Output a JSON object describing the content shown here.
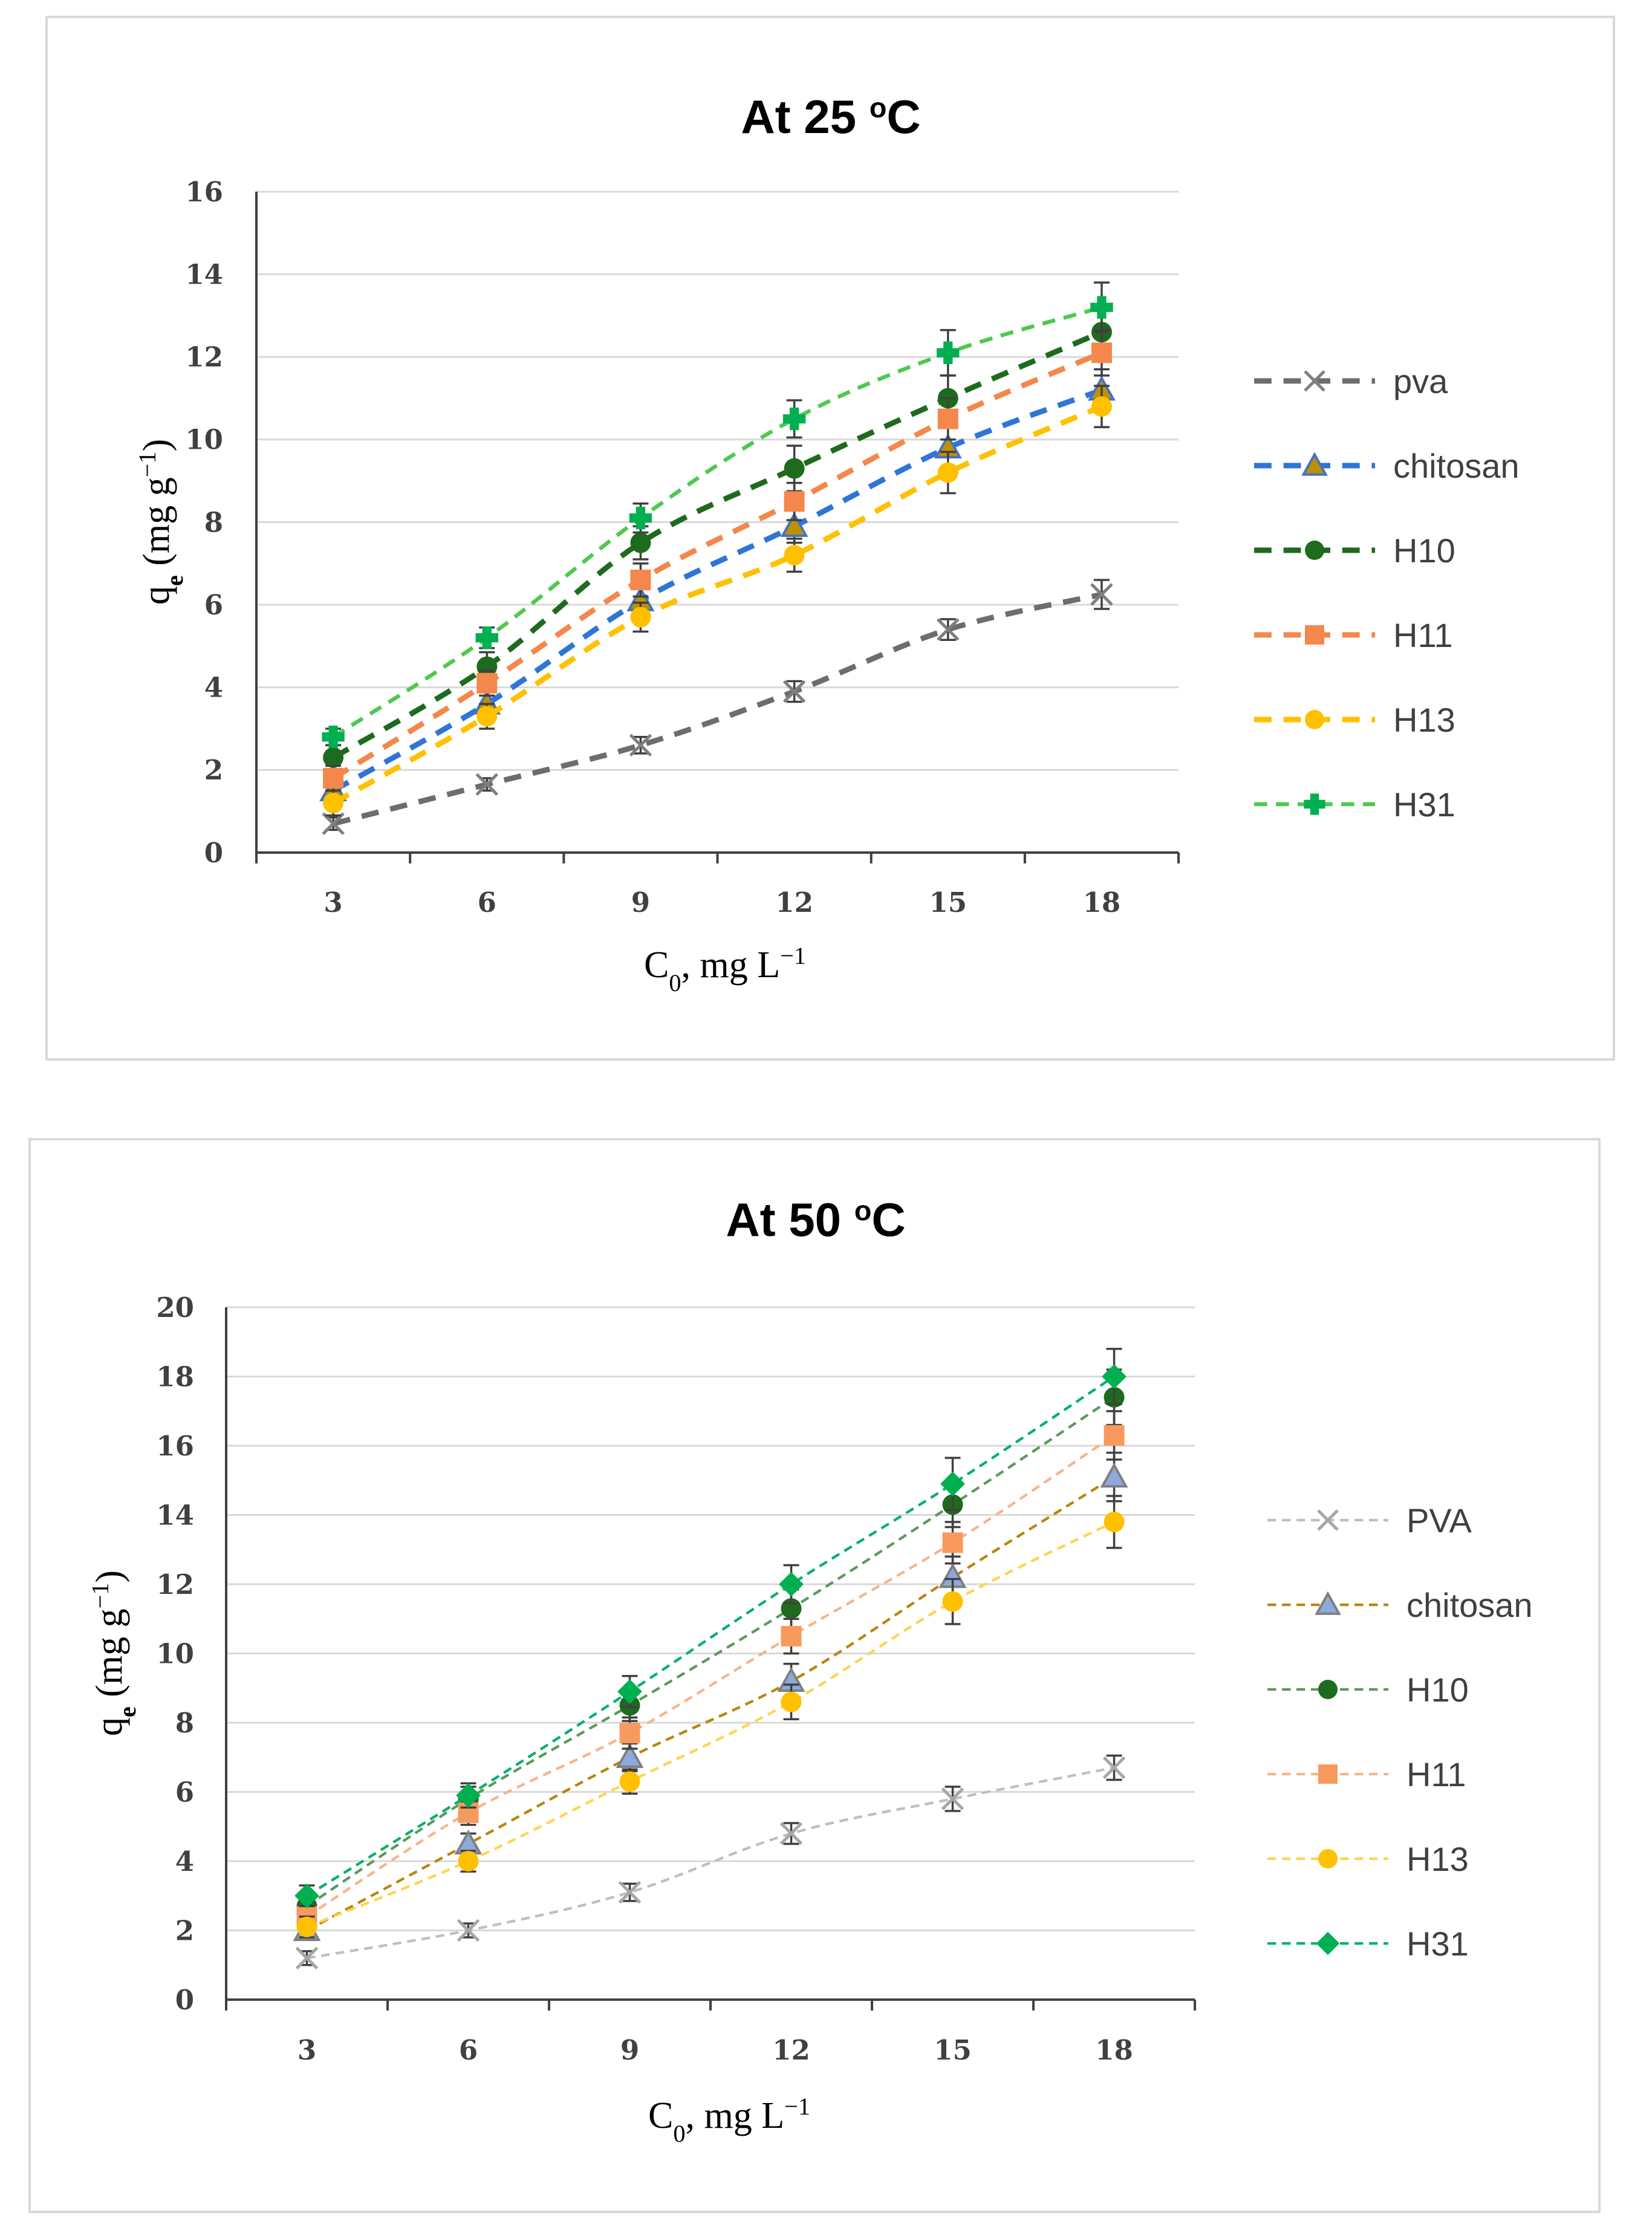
{
  "chart_data": [
    {
      "type": "line",
      "title": "At 25 ",
      "title_sup": "o",
      "title_tail": "C",
      "xlabel": "C",
      "xlabel_sub": "0",
      "xlabel_tail": ", mg L",
      "xlabel_sup": "−1",
      "ylabel": "q",
      "ylabel_sub": "e",
      "ylabel_mid": " (mg g",
      "ylabel_sup": "−1",
      "ylabel_tail": ")",
      "x": [
        3,
        6,
        9,
        12,
        15,
        18
      ],
      "x_ticks": [
        "3",
        "6",
        "9",
        "12",
        "15",
        "18"
      ],
      "ylim": [
        0,
        16
      ],
      "y_ticks": [
        "0",
        "2",
        "4",
        "6",
        "8",
        "10",
        "12",
        "14",
        "16"
      ],
      "grid": true,
      "legend_position": "right",
      "series": [
        {
          "name": "pva",
          "marker": "x",
          "color": "#7f7f7f",
          "line_color": "#6d6d6d",
          "dash": "heavy",
          "values": [
            0.7,
            1.65,
            2.6,
            3.9,
            5.4,
            6.25
          ],
          "err": [
            0.15,
            0.15,
            0.2,
            0.25,
            0.25,
            0.35
          ]
        },
        {
          "name": "chitosan",
          "marker": "triangle",
          "color": "#bf9000",
          "stroke": "#4472c4",
          "line_color": "#2e75d6",
          "dash": "heavy",
          "values": [
            1.5,
            3.6,
            6.1,
            7.9,
            9.8,
            11.2
          ],
          "err": [
            0.3,
            0.3,
            0.4,
            0.4,
            0.5,
            0.5
          ]
        },
        {
          "name": "H10",
          "marker": "circle",
          "color": "#1e6b1e",
          "line_color": "#1e6b1e",
          "dash": "heavy",
          "values": [
            2.3,
            4.5,
            7.5,
            9.3,
            11.0,
            12.6
          ],
          "err": [
            0.3,
            0.35,
            0.4,
            0.55,
            0.55,
            0.6
          ]
        },
        {
          "name": "H11",
          "marker": "square",
          "color": "#f4874b",
          "line_color": "#f4874b",
          "dash": "heavy",
          "values": [
            1.8,
            4.1,
            6.6,
            8.5,
            10.5,
            12.1
          ],
          "err": [
            0.3,
            0.3,
            0.4,
            0.45,
            0.5,
            0.55
          ]
        },
        {
          "name": "H13",
          "marker": "circle",
          "color": "#ffc000",
          "line_color": "#ffc000",
          "dash": "heavy",
          "values": [
            1.2,
            3.3,
            5.7,
            7.2,
            9.2,
            10.8
          ],
          "err": [
            0.3,
            0.3,
            0.35,
            0.4,
            0.5,
            0.5
          ]
        },
        {
          "name": "H31",
          "marker": "cross-star",
          "color": "#00b050",
          "line_color": "#4ec94e",
          "dash": "light",
          "values": [
            2.8,
            5.2,
            8.1,
            10.5,
            12.1,
            13.2
          ],
          "err": [
            0.2,
            0.25,
            0.35,
            0.45,
            0.55,
            0.6
          ]
        }
      ]
    },
    {
      "type": "line",
      "title": "At 50 ",
      "title_sup": "o",
      "title_tail": "C",
      "xlabel": "C",
      "xlabel_sub": "0",
      "xlabel_tail": ", mg L",
      "xlabel_sup": "−1",
      "ylabel": "q",
      "ylabel_sub": "e",
      "ylabel_mid": " (mg g",
      "ylabel_sup": "−1",
      "ylabel_tail": ")",
      "x": [
        3,
        6,
        9,
        12,
        15,
        18
      ],
      "x_ticks": [
        "3",
        "6",
        "9",
        "12",
        "15",
        "18"
      ],
      "ylim": [
        0,
        20
      ],
      "y_ticks": [
        "0",
        "2",
        "4",
        "6",
        "8",
        "10",
        "12",
        "14",
        "16",
        "18",
        "20"
      ],
      "grid": true,
      "legend_position": "right",
      "series": [
        {
          "name": "PVA",
          "marker": "x",
          "color": "#a6a6a6",
          "line_color": "#bfbfbf",
          "dash": "light",
          "values": [
            1.2,
            2.0,
            3.1,
            4.8,
            5.8,
            6.7
          ],
          "err": [
            0.2,
            0.2,
            0.25,
            0.3,
            0.35,
            0.35
          ]
        },
        {
          "name": "chitosan",
          "marker": "triangle",
          "color": "#8ea9db",
          "stroke": "#7f7f7f",
          "line_color": "#b8860b",
          "dash": "light",
          "values": [
            2.0,
            4.5,
            7.0,
            9.2,
            12.2,
            15.1
          ],
          "err": [
            0.25,
            0.3,
            0.4,
            0.5,
            0.6,
            0.7
          ]
        },
        {
          "name": "H10",
          "marker": "circle",
          "color": "#1e6b1e",
          "line_color": "#5a9a5a",
          "dash": "light",
          "values": [
            2.7,
            5.8,
            8.5,
            11.3,
            14.3,
            17.4
          ],
          "err": [
            0.3,
            0.35,
            0.45,
            0.55,
            0.65,
            0.8
          ]
        },
        {
          "name": "H11",
          "marker": "square",
          "color": "#f79a5e",
          "line_color": "#f8b48a",
          "dash": "light",
          "values": [
            2.4,
            5.4,
            7.7,
            10.5,
            13.2,
            16.3
          ],
          "err": [
            0.3,
            0.35,
            0.45,
            0.5,
            0.6,
            0.7
          ]
        },
        {
          "name": "H13",
          "marker": "circle",
          "color": "#ffc000",
          "line_color": "#ffd44f",
          "dash": "light",
          "values": [
            2.1,
            4.0,
            6.3,
            8.6,
            11.5,
            13.8
          ],
          "err": [
            0.3,
            0.3,
            0.35,
            0.5,
            0.65,
            0.75
          ]
        },
        {
          "name": "H31",
          "marker": "diamond",
          "color": "#00b050",
          "line_color": "#00b070",
          "dash": "light",
          "values": [
            3.0,
            5.9,
            8.9,
            12.0,
            14.9,
            18.0
          ],
          "err": [
            0.3,
            0.35,
            0.45,
            0.55,
            0.75,
            0.8
          ]
        }
      ]
    }
  ]
}
